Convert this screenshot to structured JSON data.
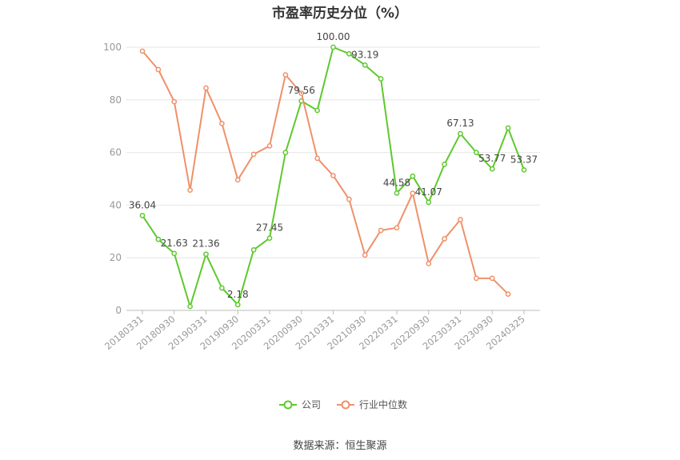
{
  "title": "市盈率历史分位（%）",
  "source": "数据来源：恒生聚源",
  "colors": {
    "company": "#5ec92e",
    "industry": "#f0906a",
    "grid": "#e6e6e6",
    "axis": "#bbbbbb"
  },
  "chart_data": {
    "type": "line",
    "title": "市盈率历史分位（%）",
    "xlabel": "",
    "ylabel": "",
    "ylim": [
      0,
      100
    ],
    "yticks": [
      0,
      20,
      40,
      60,
      80,
      100
    ],
    "grid": true,
    "legend_position": "bottom",
    "x": [
      "20180331",
      "20180630",
      "20180930",
      "20181231",
      "20190331",
      "20190630",
      "20190930",
      "20191231",
      "20200331",
      "20200630",
      "20200930",
      "20201231",
      "20210331",
      "20210630",
      "20210930",
      "20211231",
      "20220331",
      "20220630",
      "20220930",
      "20221231",
      "20230331",
      "20230630",
      "20230930",
      "20231231",
      "20240325"
    ],
    "xticks": [
      "20180331",
      "20180930",
      "20190331",
      "20190930",
      "20200331",
      "20200930",
      "20210331",
      "20210930",
      "20220331",
      "20220930",
      "20230331",
      "20230930",
      "20240325"
    ],
    "series": [
      {
        "name": "公司",
        "values": [
          36.04,
          27,
          21.63,
          1.5,
          21.36,
          8.5,
          2.18,
          23,
          27.45,
          60,
          79.56,
          76,
          100.0,
          97.5,
          93.19,
          88,
          44.58,
          51,
          41.07,
          55.5,
          67.13,
          60,
          53.77,
          69.3,
          53.37
        ],
        "labels": [
          "36.04",
          "",
          "21.63",
          "",
          "21.36",
          "",
          "2.18",
          "",
          "27.45",
          "",
          "79.56",
          "",
          "100.00",
          "",
          "93.19",
          "",
          "44.58",
          "",
          "41.07",
          "",
          "67.13",
          "",
          "53.77",
          "",
          "53.37"
        ]
      },
      {
        "name": "行业中位数",
        "values": [
          98.5,
          91.5,
          79.3,
          45.7,
          84.5,
          71,
          49.6,
          59.3,
          62.5,
          89.5,
          82.5,
          57.8,
          51.2,
          42.2,
          21,
          30.4,
          31.4,
          44.5,
          17.8,
          27.2,
          34.5,
          12.2,
          12.2,
          6.2,
          null
        ]
      }
    ]
  }
}
